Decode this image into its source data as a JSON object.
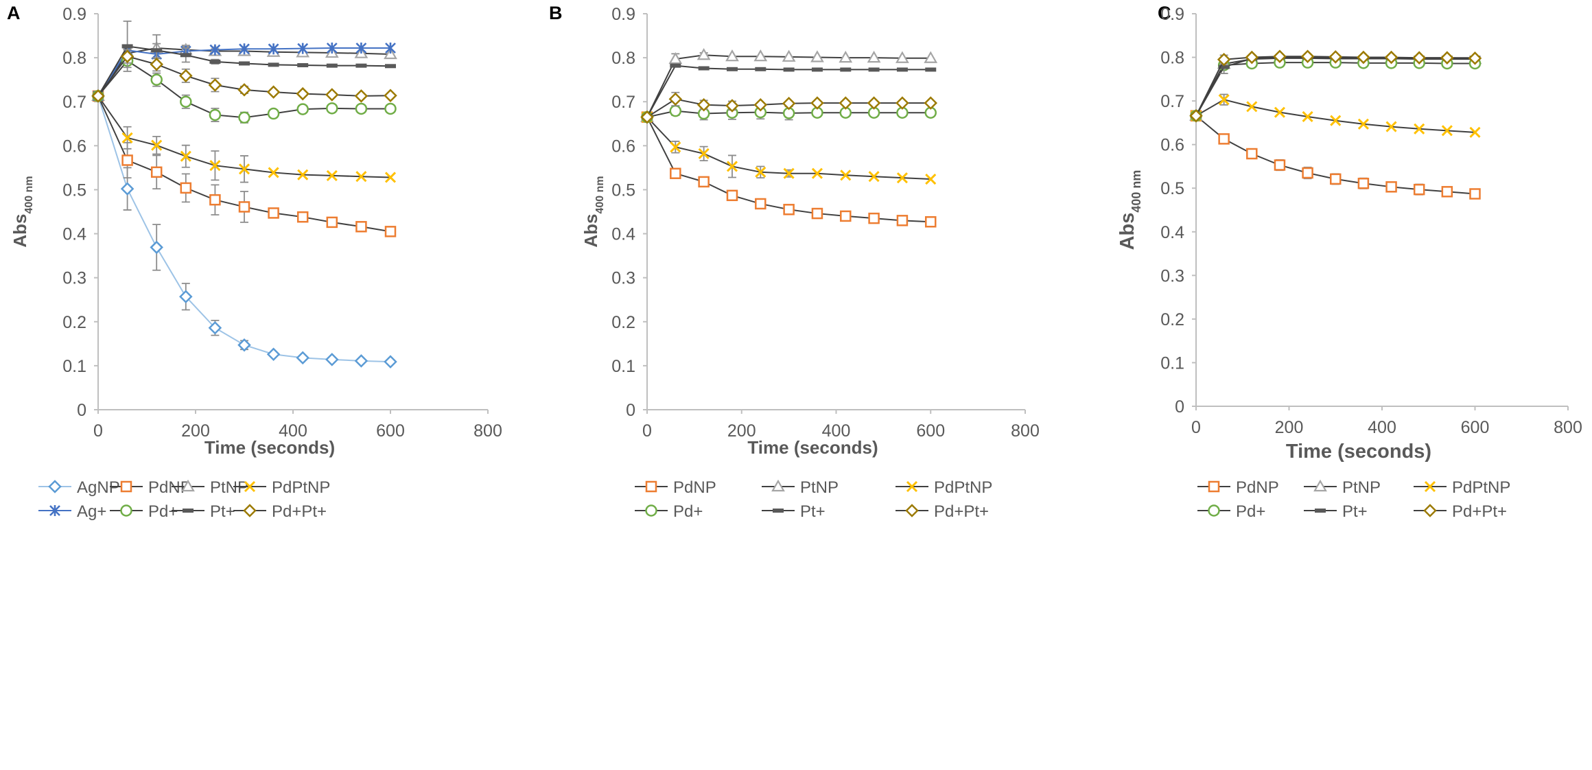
{
  "panel_count": 3,
  "chart_data": [
    {
      "type": "line",
      "panel_label": "A",
      "xlabel": "Time (seconds)",
      "ylabel": "Abs",
      "ylabel_sub": "400 nm",
      "xlim": [
        0,
        800
      ],
      "ylim": [
        0,
        0.9
      ],
      "xticks": [
        0,
        200,
        400,
        600,
        800
      ],
      "yticks": [
        0,
        0.1,
        0.2,
        0.3,
        0.4,
        0.5,
        0.6,
        0.7,
        0.8,
        0.9
      ],
      "x": [
        0,
        60,
        120,
        180,
        240,
        300,
        360,
        420,
        480,
        540,
        600
      ],
      "series": [
        {
          "name": "AgNP",
          "color": "#5b9bd5",
          "line": "#9dc3e6",
          "marker": "diamond",
          "values": [
            0.713,
            0.502,
            0.369,
            0.257,
            0.186,
            0.147,
            0.126,
            0.118,
            0.114,
            0.111,
            0.109
          ],
          "err": [
            0,
            0.048,
            0.052,
            0.03,
            0.017,
            0.01,
            0,
            0,
            0,
            0,
            0
          ]
        },
        {
          "name": "PdNP",
          "color": "#ed7d31",
          "line": "#404040",
          "marker": "square",
          "values": [
            0.713,
            0.567,
            0.54,
            0.504,
            0.477,
            0.461,
            0.447,
            0.438,
            0.426,
            0.416,
            0.405
          ],
          "err": [
            0,
            0.04,
            0.038,
            0.032,
            0.034,
            0.035,
            0,
            0,
            0,
            0,
            0
          ]
        },
        {
          "name": "PtNP",
          "color": "#a5a5a5",
          "line": "#404040",
          "marker": "triangle",
          "values": [
            0.713,
            0.81,
            0.822,
            0.818,
            0.815,
            0.815,
            0.813,
            0.812,
            0.811,
            0.81,
            0.808
          ],
          "err": [
            0,
            0.01,
            0.01,
            0.01,
            0.005,
            0,
            0,
            0,
            0,
            0,
            0
          ]
        },
        {
          "name": "PdPtNP",
          "color": "#ffc000",
          "line": "#404040",
          "marker": "x",
          "values": [
            0.713,
            0.618,
            0.601,
            0.576,
            0.555,
            0.547,
            0.539,
            0.534,
            0.532,
            0.53,
            0.528
          ],
          "err": [
            0,
            0.025,
            0.02,
            0.025,
            0.033,
            0.03,
            0,
            0,
            0,
            0,
            0
          ]
        },
        {
          "name": "Ag+",
          "color": "#4472c4",
          "line": "#4472c4",
          "marker": "star",
          "values": [
            0.713,
            0.817,
            0.808,
            0.815,
            0.818,
            0.82,
            0.82,
            0.821,
            0.822,
            0.822,
            0.822
          ],
          "err": [
            0,
            0,
            0.01,
            0.01,
            0,
            0,
            0,
            0,
            0,
            0,
            0
          ]
        },
        {
          "name": "Pd+",
          "color": "#70ad47",
          "line": "#404040",
          "marker": "circle",
          "values": [
            0.713,
            0.793,
            0.75,
            0.7,
            0.67,
            0.664,
            0.673,
            0.683,
            0.685,
            0.684,
            0.684
          ],
          "err": [
            0,
            0.015,
            0.015,
            0.015,
            0.015,
            0.012,
            0,
            0,
            0,
            0,
            0
          ]
        },
        {
          "name": "Pt+",
          "color": "#595959",
          "line": "#404040",
          "marker": "dash",
          "values": [
            0.713,
            0.826,
            0.817,
            0.806,
            0.791,
            0.787,
            0.784,
            0.783,
            0.782,
            0.782,
            0.781
          ],
          "err": [
            0,
            0.057,
            0.035,
            0.016,
            0.005,
            0,
            0,
            0,
            0,
            0,
            0
          ]
        },
        {
          "name": "Pd+Pt+",
          "color": "#9c7a00",
          "line": "#404040",
          "marker": "diamond",
          "values": [
            0.713,
            0.803,
            0.785,
            0.759,
            0.738,
            0.727,
            0.722,
            0.718,
            0.716,
            0.713,
            0.714
          ],
          "err": [
            0,
            0.015,
            0.015,
            0.015,
            0.015,
            0.008,
            0,
            0,
            0,
            0,
            0
          ]
        }
      ],
      "legend_rows": [
        [
          "AgNP",
          "PdNP",
          "PtNP",
          "PdPtNP"
        ],
        [
          "Ag+",
          "Pd+",
          "Pt+",
          "Pd+Pt+"
        ]
      ]
    },
    {
      "type": "line",
      "panel_label": "B",
      "xlabel": "Time (seconds)",
      "ylabel": "Abs",
      "ylabel_sub": "400 nm",
      "xlim": [
        0,
        800
      ],
      "ylim": [
        0,
        0.9
      ],
      "xticks": [
        0,
        200,
        400,
        600,
        800
      ],
      "yticks": [
        0,
        0.1,
        0.2,
        0.3,
        0.4,
        0.5,
        0.6,
        0.7,
        0.8,
        0.9
      ],
      "x": [
        0,
        60,
        120,
        180,
        240,
        300,
        360,
        420,
        480,
        540,
        600
      ],
      "series": [
        {
          "name": "PdNP",
          "color": "#ed7d31",
          "line": "#404040",
          "marker": "square",
          "values": [
            0.665,
            0.537,
            0.518,
            0.487,
            0.468,
            0.455,
            0.446,
            0.44,
            0.435,
            0.43,
            0.427
          ],
          "err": [
            0,
            0,
            0,
            0,
            0,
            0,
            0,
            0,
            0,
            0,
            0
          ]
        },
        {
          "name": "PtNP",
          "color": "#a5a5a5",
          "line": "#404040",
          "marker": "triangle",
          "values": [
            0.665,
            0.797,
            0.806,
            0.803,
            0.803,
            0.802,
            0.801,
            0.8,
            0.8,
            0.799,
            0.799
          ],
          "err": [
            0,
            0.012,
            0.005,
            0,
            0,
            0,
            0,
            0,
            0,
            0,
            0
          ]
        },
        {
          "name": "PdPtNP",
          "color": "#ffc000",
          "line": "#404040",
          "marker": "x",
          "values": [
            0.665,
            0.597,
            0.582,
            0.553,
            0.54,
            0.537,
            0.537,
            0.533,
            0.53,
            0.527,
            0.524
          ],
          "err": [
            0,
            0.013,
            0.016,
            0.025,
            0.013,
            0.008,
            0,
            0,
            0,
            0,
            0
          ]
        },
        {
          "name": "Pd+",
          "color": "#70ad47",
          "line": "#404040",
          "marker": "circle",
          "values": [
            0.665,
            0.679,
            0.673,
            0.675,
            0.676,
            0.674,
            0.675,
            0.675,
            0.675,
            0.675,
            0.675
          ],
          "err": [
            0,
            0.01,
            0.014,
            0.015,
            0.015,
            0.015,
            0,
            0,
            0,
            0,
            0
          ]
        },
        {
          "name": "Pt+",
          "color": "#595959",
          "line": "#404040",
          "marker": "dash",
          "values": [
            0.665,
            0.782,
            0.776,
            0.774,
            0.774,
            0.773,
            0.773,
            0.773,
            0.773,
            0.773,
            0.773
          ],
          "err": [
            0,
            0,
            0,
            0,
            0,
            0,
            0,
            0,
            0,
            0,
            0
          ]
        },
        {
          "name": "Pd+Pt+",
          "color": "#9c7a00",
          "line": "#404040",
          "marker": "diamond",
          "values": [
            0.665,
            0.706,
            0.693,
            0.691,
            0.693,
            0.696,
            0.697,
            0.697,
            0.697,
            0.697,
            0.697
          ],
          "err": [
            0,
            0.015,
            0.01,
            0.01,
            0,
            0,
            0,
            0,
            0,
            0,
            0
          ]
        }
      ],
      "legend_rows": [
        [
          "PdNP",
          "PtNP",
          "PdPtNP"
        ],
        [
          "Pd+",
          "Pt+",
          "Pd+Pt+"
        ]
      ]
    },
    {
      "type": "line",
      "panel_label": "C",
      "xlabel": "Time (seconds)",
      "ylabel": "Abs",
      "ylabel_sub": "400 nm",
      "xlim": [
        0,
        800
      ],
      "ylim": [
        0,
        0.9
      ],
      "xticks": [
        0,
        200,
        400,
        600,
        800
      ],
      "yticks": [
        0,
        0.1,
        0.2,
        0.3,
        0.4,
        0.5,
        0.6,
        0.7,
        0.8,
        0.9
      ],
      "x": [
        0,
        60,
        120,
        180,
        240,
        300,
        360,
        420,
        480,
        540,
        600
      ],
      "series": [
        {
          "name": "PdNP",
          "color": "#ed7d31",
          "line": "#404040",
          "marker": "square",
          "values": [
            0.666,
            0.613,
            0.579,
            0.553,
            0.535,
            0.521,
            0.511,
            0.503,
            0.497,
            0.492,
            0.487
          ],
          "err": [
            0,
            0,
            0.008,
            0.012,
            0.013,
            0.012,
            0.012,
            0.01,
            0.012,
            0.01,
            0.01
          ]
        },
        {
          "name": "PtNP",
          "color": "#a5a5a5",
          "line": "#404040",
          "marker": "triangle",
          "values": [
            0.666,
            0.785,
            0.796,
            0.798,
            0.798,
            0.797,
            0.797,
            0.797,
            0.796,
            0.796,
            0.796
          ],
          "err": [
            0,
            0.01,
            0,
            0,
            0,
            0,
            0,
            0,
            0,
            0,
            0
          ]
        },
        {
          "name": "PdPtNP",
          "color": "#ffc000",
          "line": "#404040",
          "marker": "x",
          "values": [
            0.666,
            0.703,
            0.687,
            0.674,
            0.664,
            0.655,
            0.647,
            0.641,
            0.636,
            0.632,
            0.628
          ],
          "err": [
            0,
            0.012,
            0,
            0,
            0,
            0,
            0,
            0,
            0,
            0,
            0
          ]
        },
        {
          "name": "Pd+",
          "color": "#70ad47",
          "line": "#404040",
          "marker": "circle",
          "values": [
            0.666,
            0.782,
            0.786,
            0.788,
            0.788,
            0.788,
            0.787,
            0.787,
            0.787,
            0.786,
            0.786
          ],
          "err": [
            0,
            0,
            0,
            0,
            0,
            0,
            0,
            0,
            0,
            0,
            0
          ]
        },
        {
          "name": "Pt+",
          "color": "#595959",
          "line": "#404040",
          "marker": "dash",
          "values": [
            0.666,
            0.778,
            0.797,
            0.8,
            0.8,
            0.8,
            0.799,
            0.799,
            0.799,
            0.799,
            0.799
          ],
          "err": [
            0,
            0.015,
            0,
            0,
            0,
            0,
            0,
            0,
            0,
            0,
            0
          ]
        },
        {
          "name": "Pd+Pt+",
          "color": "#9c7a00",
          "line": "#404040",
          "marker": "diamond",
          "values": [
            0.666,
            0.795,
            0.8,
            0.802,
            0.802,
            0.801,
            0.8,
            0.8,
            0.799,
            0.799,
            0.798
          ],
          "err": [
            0,
            0.01,
            0,
            0,
            0,
            0,
            0,
            0,
            0,
            0,
            0
          ]
        }
      ],
      "legend_rows": [
        [
          "PdNP",
          "PtNP",
          "PdPtNP"
        ],
        [
          "Pd+",
          "Pt+",
          "Pd+Pt+"
        ]
      ]
    }
  ]
}
